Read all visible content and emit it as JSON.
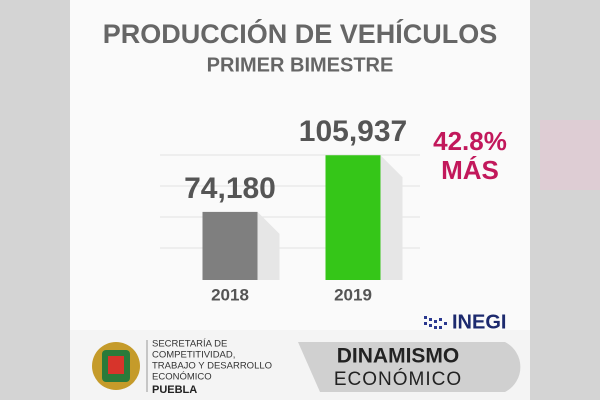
{
  "chart_data": {
    "type": "bar",
    "title": "PRODUCCIÓN DE VEHÍCULOS",
    "subtitle": "PRIMER BIMESTRE",
    "categories": [
      "2018",
      "2019"
    ],
    "values": [
      74180,
      105937
    ],
    "value_labels": [
      "74,180",
      "105,937"
    ],
    "colors": [
      "#7f7f7f",
      "#35c618"
    ],
    "ylim": [
      36000,
      110000
    ],
    "annotations": [
      "42.8%",
      "MÁS"
    ]
  },
  "footer": {
    "source": "INEGI",
    "org_lines": [
      "SECRETARÍA DE",
      "COMPETITIVIDAD,",
      "TRABAJO Y DESARROLLO",
      "ECONÓMICO"
    ],
    "org_state": "PUEBLA",
    "badge": [
      "DINAMISMO",
      "ECONÓMICO"
    ]
  }
}
